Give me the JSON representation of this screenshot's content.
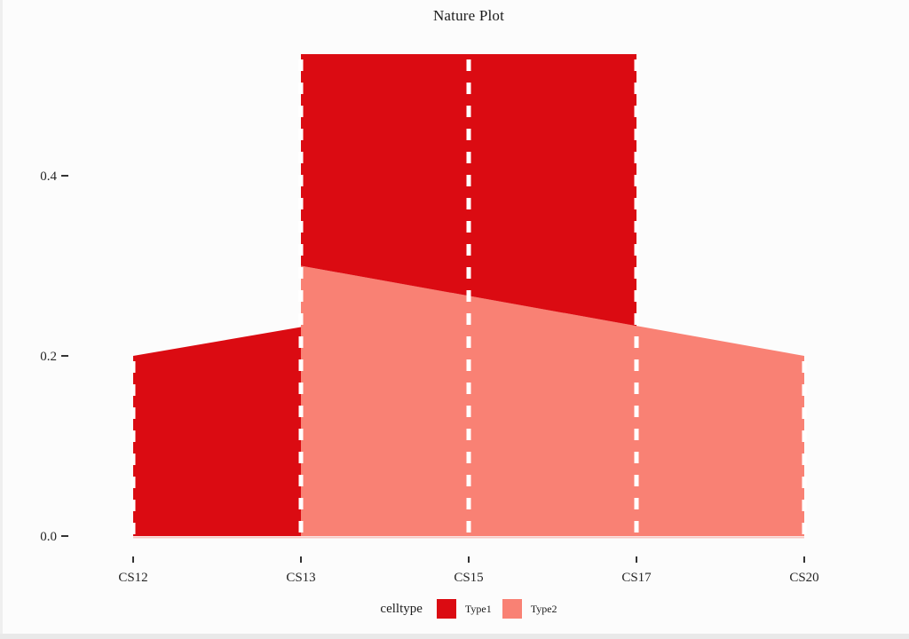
{
  "chart_data": {
    "type": "area",
    "title": "Nature Plot",
    "legend_title": "celltype",
    "categories": [
      "CS12",
      "CS13",
      "CS15",
      "CS17",
      "CS20"
    ],
    "yticks": [
      {
        "label": "0.0",
        "value": 0.0
      },
      {
        "label": "0.2",
        "value": 0.2
      },
      {
        "label": "0.4",
        "value": 0.4
      }
    ],
    "ylim": [
      0,
      0.55
    ],
    "grid": false,
    "legend_position": "bottom",
    "series": [
      {
        "name": "Type1",
        "color": "#db0b12"
      },
      {
        "name": "Type2",
        "color": "#f98174"
      }
    ],
    "regions": [
      {
        "name": "area-type1-cs12-cs13",
        "series": "Type1",
        "points": [
          [
            0,
            0
          ],
          [
            0,
            0.2
          ],
          [
            1,
            0.232
          ],
          [
            1,
            0
          ]
        ]
      },
      {
        "name": "area-type2-cs13-cs20",
        "series": "Type2",
        "points": [
          [
            1,
            0
          ],
          [
            1,
            0.3
          ],
          [
            4,
            0.2
          ],
          [
            4,
            0
          ]
        ]
      },
      {
        "name": "area-type1-cs13-cs17",
        "series": "Type1",
        "points": [
          [
            1,
            0.3
          ],
          [
            1,
            0.535
          ],
          [
            3,
            0.535
          ],
          [
            3,
            0.2333
          ]
        ]
      }
    ],
    "guides": [
      {
        "category": "CS12",
        "x": 0,
        "y0": 0,
        "y1": 0.2
      },
      {
        "category": "CS13",
        "x": 1,
        "y0": 0,
        "y1": 0.535
      },
      {
        "category": "CS15",
        "x": 2,
        "y0": 0,
        "y1": 0.535
      },
      {
        "category": "CS17",
        "x": 3,
        "y0": 0,
        "y1": 0.535
      },
      {
        "category": "CS20",
        "x": 4,
        "y0": 0,
        "y1": 0.2
      }
    ],
    "guide_style": {
      "color": "#ffffff",
      "dash": "13 13",
      "width": 5
    },
    "baseline_color": "#f6b4ad",
    "axis_text_color": "#262626"
  }
}
